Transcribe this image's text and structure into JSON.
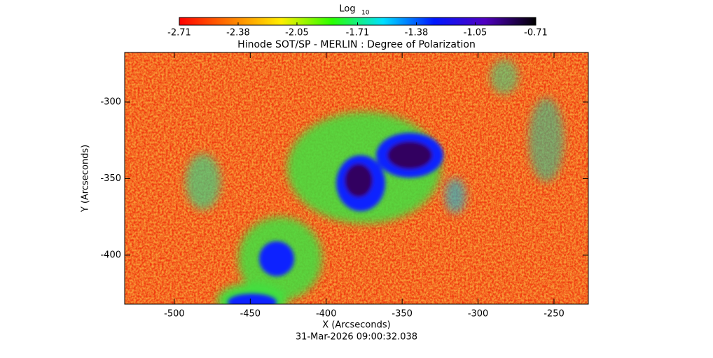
{
  "chart_data": {
    "type": "image",
    "title": "Hinode SOT/SP - MERLIN : Degree of Polarization",
    "x_label": "X (Arcseconds)",
    "y_label": "Y (Arcseconds)",
    "timestamp": "31-Mar-2026 09:00:32.038",
    "colorbar_label": "Log",
    "colorbar_label_sub": "10",
    "clim": [
      -2.71,
      -0.71
    ],
    "colorbar_ticks": [
      -2.71,
      -2.38,
      -2.05,
      -1.71,
      -1.38,
      -1.05,
      -0.71
    ],
    "colormap": [
      "#ff0000",
      "#ff7a00",
      "#ffee00",
      "#2aff00",
      "#00e0ff",
      "#0018ff",
      "#5000c0",
      "#000000"
    ],
    "xlim": [
      -532.7,
      -227.4
    ],
    "xticks": [
      -500,
      -450,
      -400,
      -350,
      -300,
      -250
    ],
    "ylim": [
      -432,
      -267.6
    ],
    "yticks": [
      -300,
      -350,
      -400
    ]
  }
}
